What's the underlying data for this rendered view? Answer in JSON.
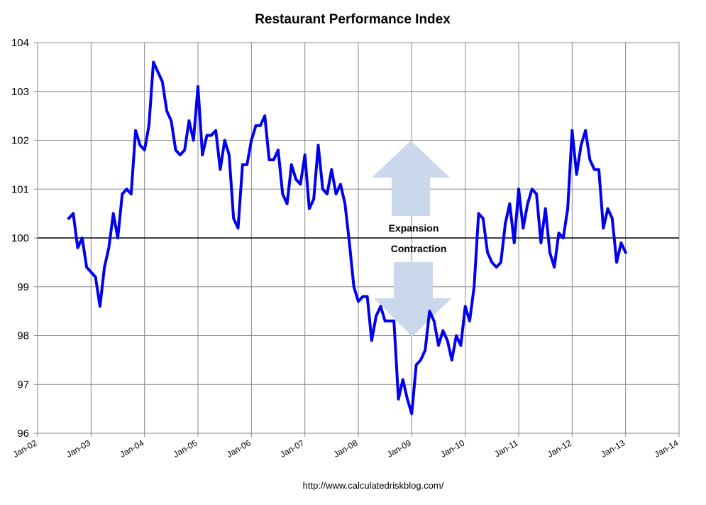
{
  "chart_data": {
    "type": "line",
    "title": "Restaurant Performance Index",
    "source": "http://www.calculatedriskblog.com/",
    "ylim": [
      96,
      104
    ],
    "yticks": [
      "96",
      "97",
      "98",
      "99",
      "100",
      "101",
      "102",
      "103",
      "104"
    ],
    "xticks": [
      "Jan-02",
      "Jan-03",
      "Jan-04",
      "Jan-05",
      "Jan-06",
      "Jan-07",
      "Jan-08",
      "Jan-09",
      "Jan-10",
      "Jan-11",
      "Jan-12",
      "Jan-13",
      "Jan-14"
    ],
    "grid": true,
    "reference_line": 100,
    "annotations": {
      "up": "Expansion",
      "down": "Contraction"
    },
    "colors": {
      "series": "#0000ee",
      "arrow": "#c9d8ea",
      "grid": "#888888"
    },
    "series": [
      {
        "start": "2002-08",
        "values": [
          100.4,
          100.5,
          99.8,
          100.0,
          99.4,
          99.3,
          99.2,
          98.6,
          99.4,
          99.8,
          100.5,
          100.0,
          100.9,
          101.0,
          100.9,
          102.2,
          101.9,
          101.8,
          102.3,
          103.6,
          103.4,
          103.2,
          102.6,
          102.4,
          101.8,
          101.7,
          101.8,
          102.4,
          102.0,
          103.1,
          101.7,
          102.1,
          102.1,
          102.2,
          101.4,
          102.0,
          101.7,
          100.4,
          100.2,
          101.5,
          101.5,
          102.0,
          102.3,
          102.3,
          102.5,
          101.6,
          101.6,
          101.8,
          100.9,
          100.7,
          101.5,
          101.2,
          101.1,
          101.7,
          100.6,
          100.8,
          101.9,
          101.0,
          100.9,
          101.4,
          100.9,
          101.1,
          100.7,
          99.9,
          99.0,
          98.7,
          98.8,
          98.8,
          97.9,
          98.4,
          98.6,
          98.3,
          98.3,
          98.3,
          96.7,
          97.1,
          96.7,
          96.4,
          97.4,
          97.5,
          97.7,
          98.5,
          98.3,
          97.8,
          98.1,
          97.9,
          97.5,
          98.0,
          97.8,
          98.6,
          98.3,
          99.0,
          100.5,
          100.4,
          99.7,
          99.5,
          99.4,
          99.5,
          100.3,
          100.7,
          99.9,
          101.0,
          100.2,
          100.7,
          101.0,
          100.9,
          99.9,
          100.6,
          99.7,
          99.4,
          100.1,
          100.0,
          100.6,
          102.2,
          101.3,
          101.9,
          102.2,
          101.6,
          101.4,
          101.4,
          100.2,
          100.6,
          100.4,
          99.5,
          99.9,
          99.7
        ]
      }
    ]
  }
}
